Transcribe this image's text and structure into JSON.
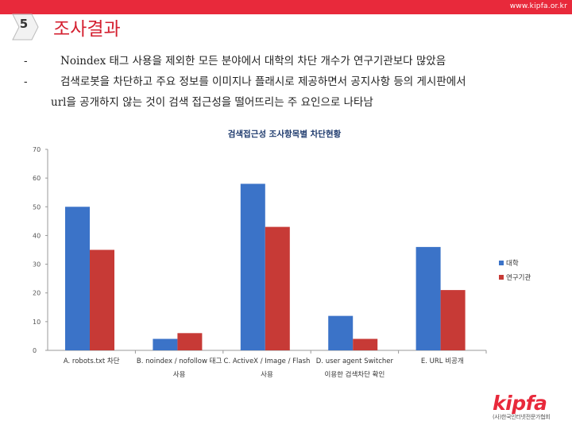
{
  "header": {
    "url": "www.kipfa.or.kr",
    "section_number": "5",
    "title": "조사결과"
  },
  "bullets": [
    {
      "dash": "-",
      "text": "Noindex 태그 사용을 제외한 모든 분야에서 대학의 차단 개수가 연구기관보다 많았음"
    },
    {
      "dash": "-",
      "text": "검색로봇을 차단하고 주요 정보를 이미지나 플래시로 제공하면서 공지사항 등의 게시판에서"
    }
  ],
  "bullet_continuation": "url을 공개하지 않는 것이 검색 접근성을 떨어뜨리는 주 요인으로 나타남",
  "colors": {
    "brand": "#e8293b",
    "series1": "#3b73c8",
    "series2": "#c73a36"
  },
  "chart_data": {
    "type": "bar",
    "title": "검색접근성 조사항목별 차단현황",
    "categories": [
      [
        "A. robots.txt 차단"
      ],
      [
        "B. noindex / nofollow 태그",
        "사용"
      ],
      [
        "C. ActiveX / Image / Flash",
        "사용"
      ],
      [
        "D. user agent Switcher",
        "이용한 검색차단 확인"
      ],
      [
        "E. URL 비공개"
      ]
    ],
    "series": [
      {
        "name": "대학",
        "values": [
          50,
          4,
          58,
          12,
          36
        ]
      },
      {
        "name": "연구기관",
        "values": [
          35,
          6,
          43,
          4,
          21
        ]
      }
    ],
    "ylim": [
      0,
      70
    ],
    "yticks": [
      0,
      10,
      20,
      30,
      40,
      50,
      60,
      70
    ],
    "xlabel": "",
    "ylabel": "",
    "grid": false,
    "legend": "right"
  },
  "logo": {
    "name": "kipfa",
    "subtitle": "(사)한국인터넷전문가협회"
  }
}
